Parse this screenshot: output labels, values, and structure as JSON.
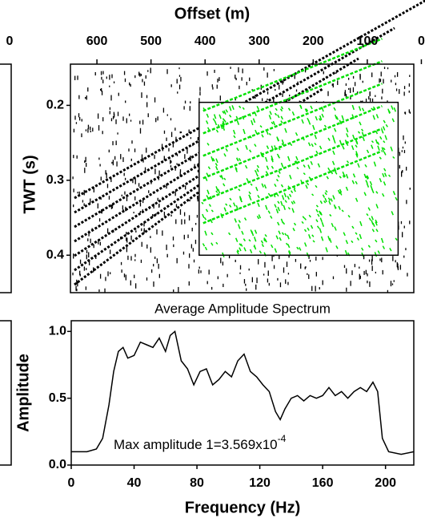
{
  "chart_data": [
    {
      "type": "image",
      "xticks": [
        0
      ]
    },
    {
      "type": "image",
      "xlabel": "Offset (m)",
      "ylabel": "TWT (s)",
      "xlim": [
        649,
        14
      ],
      "xticks": [
        600,
        500,
        400,
        300,
        200,
        100,
        0
      ],
      "ylim": [
        0.145,
        0.45
      ],
      "yticks": [
        0.2,
        0.3,
        0.4
      ],
      "y_inverted": true,
      "window": {
        "x": [
          411,
          43
        ],
        "y": [
          0.196,
          0.4
        ],
        "color": "#00e000"
      }
    },
    {
      "type": "line",
      "title": "Average Amplitude Spectrum",
      "xlabel": "Frequency (Hz)",
      "ylabel": "Amplitude",
      "annotation": "Max amplitude 1=3.569x10",
      "annotation_exponent": "-4",
      "xlim": [
        0,
        218
      ],
      "xticks": [
        0,
        40,
        80,
        120,
        160,
        200
      ],
      "ylim": [
        0,
        1.08
      ],
      "yticks": [
        {
          "value": 0,
          "label": "0.0"
        },
        0.5,
        {
          "value": 1,
          "label": "1.0"
        }
      ],
      "series": [
        {
          "color": "#000000",
          "x": [
            0,
            10,
            16,
            20,
            24,
            27,
            30,
            33,
            36,
            40,
            44,
            48,
            52,
            56,
            60,
            63,
            66,
            70,
            74,
            78,
            82,
            86,
            90,
            94,
            98,
            102,
            106,
            110,
            114,
            118,
            122,
            126,
            130,
            133,
            136,
            140,
            144,
            148,
            152,
            156,
            160,
            164,
            168,
            172,
            176,
            180,
            184,
            188,
            192,
            195,
            198,
            202,
            210,
            218
          ],
          "values": [
            0.1,
            0.1,
            0.12,
            0.2,
            0.45,
            0.7,
            0.85,
            0.88,
            0.8,
            0.82,
            0.92,
            0.9,
            0.88,
            0.95,
            0.85,
            0.97,
            1.0,
            0.78,
            0.72,
            0.6,
            0.7,
            0.72,
            0.6,
            0.64,
            0.7,
            0.66,
            0.78,
            0.83,
            0.7,
            0.66,
            0.6,
            0.55,
            0.4,
            0.34,
            0.42,
            0.5,
            0.52,
            0.48,
            0.52,
            0.5,
            0.52,
            0.58,
            0.52,
            0.55,
            0.5,
            0.55,
            0.58,
            0.55,
            0.62,
            0.55,
            0.2,
            0.1,
            0.08,
            0.1
          ]
        }
      ]
    }
  ]
}
